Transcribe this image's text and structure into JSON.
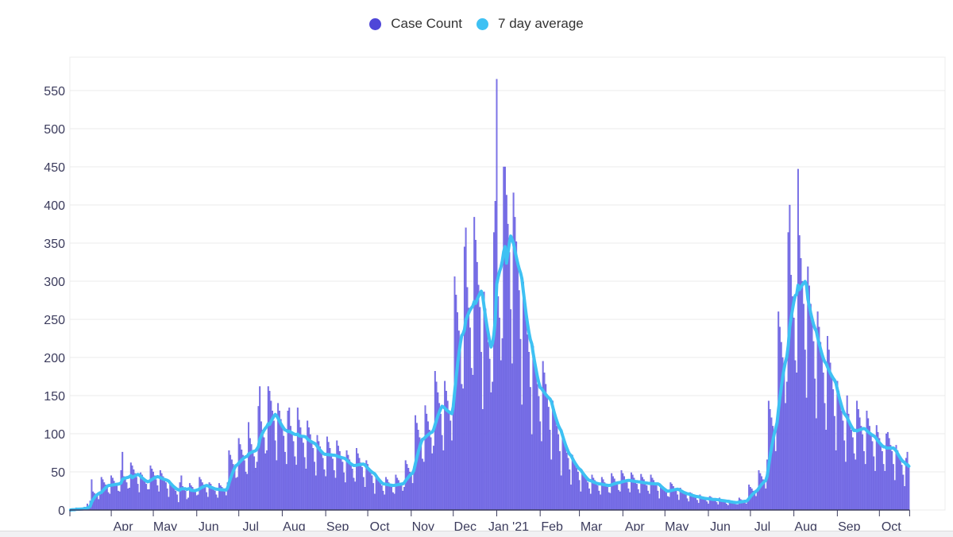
{
  "chart_data": {
    "type": "bar",
    "title": "",
    "xlabel": "",
    "ylabel": "",
    "ylim": [
      0,
      570
    ],
    "y_ticks": [
      0,
      50,
      100,
      150,
      200,
      250,
      300,
      350,
      400,
      450,
      500,
      550
    ],
    "grid": true,
    "legend_position": "top-center",
    "colors": {
      "case_count": "#7b72e9",
      "case_count_edge": "#5a50d6",
      "legend_case": "#4f46d8",
      "average": "#3ec1f3"
    },
    "start_date": "2020-03-03",
    "x_ticks": [
      {
        "label": "Apr",
        "date": "2020-04-01"
      },
      {
        "label": "May",
        "date": "2020-05-01"
      },
      {
        "label": "Jun",
        "date": "2020-06-01"
      },
      {
        "label": "Jul",
        "date": "2020-07-01"
      },
      {
        "label": "Aug",
        "date": "2020-08-01"
      },
      {
        "label": "Sep",
        "date": "2020-09-01"
      },
      {
        "label": "Oct",
        "date": "2020-10-01"
      },
      {
        "label": "Nov",
        "date": "2020-11-01"
      },
      {
        "label": "Dec",
        "date": "2020-12-01"
      },
      {
        "label": "Jan '21",
        "date": "2021-01-01"
      },
      {
        "label": "Feb",
        "date": "2021-02-01"
      },
      {
        "label": "Mar",
        "date": "2021-03-01"
      },
      {
        "label": "Apr",
        "date": "2021-04-01"
      },
      {
        "label": "May",
        "date": "2021-05-01"
      },
      {
        "label": "Jun",
        "date": "2021-06-01"
      },
      {
        "label": "Jul",
        "date": "2021-07-01"
      },
      {
        "label": "Aug",
        "date": "2021-08-01"
      },
      {
        "label": "Sep",
        "date": "2021-09-01"
      },
      {
        "label": "Oct",
        "date": "2021-10-01"
      }
    ],
    "series": [
      {
        "name": "Case Count",
        "kind": "bar",
        "values": [
          0,
          2,
          1,
          0,
          3,
          1,
          0,
          1,
          3,
          2,
          4,
          2,
          8,
          5,
          12,
          40,
          24,
          22,
          20,
          18,
          14,
          20,
          43,
          40,
          36,
          33,
          30,
          23,
          21,
          45,
          42,
          38,
          35,
          32,
          25,
          24,
          52,
          76,
          44,
          40,
          36,
          28,
          29,
          62,
          58,
          53,
          48,
          43,
          34,
          23,
          49,
          46,
          42,
          38,
          34,
          27,
          27,
          58,
          54,
          50,
          45,
          40,
          32,
          24,
          52,
          48,
          44,
          40,
          36,
          28,
          17,
          36,
          34,
          31,
          28,
          25,
          20,
          10,
          36,
          45,
          31,
          28,
          25,
          14,
          16,
          35,
          32,
          30,
          27,
          24,
          19,
          20,
          43,
          40,
          36,
          33,
          30,
          23,
          17,
          36,
          34,
          31,
          28,
          25,
          20,
          16,
          35,
          32,
          30,
          27,
          24,
          19,
          36,
          78,
          72,
          66,
          60,
          54,
          42,
          43,
          94,
          86,
          79,
          72,
          65,
          50,
          47,
          115,
          94,
          86,
          78,
          70,
          55,
          63,
          136,
          162,
          116,
          105,
          95,
          74,
          78,
          162,
          156,
          143,
          130,
          117,
          91,
          65,
          140,
          130,
          119,
          108,
          97,
          76,
          60,
          130,
          134,
          110,
          100,
          90,
          70,
          59,
          134,
          118,
          108,
          98,
          88,
          69,
          54,
          117,
          108,
          99,
          90,
          81,
          63,
          45,
          98,
          90,
          83,
          75,
          68,
          53,
          44,
          96,
          89,
          81,
          74,
          67,
          52,
          42,
          91,
          84,
          77,
          70,
          63,
          49,
          36,
          78,
          72,
          66,
          60,
          54,
          42,
          37,
          81,
          74,
          68,
          62,
          56,
          43,
          30,
          65,
          60,
          55,
          50,
          45,
          35,
          21,
          46,
          42,
          39,
          35,
          32,
          25,
          20,
          43,
          40,
          36,
          33,
          30,
          23,
          21,
          46,
          42,
          39,
          35,
          32,
          25,
          30,
          65,
          60,
          55,
          50,
          45,
          35,
          57,
          124,
          114,
          105,
          95,
          86,
          67,
          63,
          137,
          126,
          116,
          105,
          95,
          74,
          84,
          182,
          168,
          154,
          140,
          126,
          98,
          78,
          169,
          156,
          143,
          130,
          117,
          91,
          141,
          306,
          282,
          259,
          235,
          212,
          165,
          159,
          345,
          370,
          292,
          265,
          239,
          186,
          177,
          384,
          354,
          325,
          295,
          266,
          207,
          132,
          286,
          264,
          242,
          220,
          198,
          154,
          168,
          364,
          405,
          565,
          280,
          252,
          196,
          225,
          450,
          450,
          413,
          375,
          338,
          263,
          192,
          416,
          384,
          352,
          320,
          288,
          224,
          138,
          299,
          276,
          253,
          230,
          207,
          161,
          99,
          215,
          198,
          182,
          165,
          149,
          116,
          90,
          195,
          180,
          165,
          150,
          135,
          105,
          66,
          143,
          132,
          121,
          110,
          99,
          77,
          45,
          98,
          90,
          83,
          75,
          68,
          53,
          33,
          72,
          66,
          61,
          55,
          50,
          39,
          24,
          52,
          48,
          44,
          40,
          36,
          28,
          21,
          46,
          42,
          39,
          35,
          32,
          25,
          20,
          43,
          40,
          36,
          33,
          30,
          23,
          22,
          48,
          44,
          41,
          37,
          33,
          26,
          24,
          52,
          48,
          44,
          40,
          36,
          28,
          23,
          49,
          46,
          42,
          38,
          34,
          27,
          22,
          47,
          43,
          40,
          36,
          32,
          25,
          21,
          46,
          42,
          39,
          35,
          32,
          25,
          15,
          33,
          30,
          28,
          25,
          23,
          18,
          17,
          36,
          34,
          31,
          28,
          25,
          20,
          13,
          29,
          26,
          24,
          22,
          20,
          15,
          11,
          23,
          22,
          20,
          18,
          16,
          13,
          9,
          20,
          18,
          17,
          15,
          14,
          11,
          8,
          18,
          17,
          15,
          14,
          13,
          10,
          7,
          16,
          14,
          13,
          12,
          11,
          8,
          6,
          13,
          12,
          11,
          10,
          9,
          7,
          7,
          16,
          14,
          13,
          12,
          11,
          8,
          15,
          33,
          30,
          28,
          25,
          23,
          18,
          24,
          52,
          48,
          44,
          40,
          36,
          28,
          66,
          143,
          132,
          121,
          110,
          99,
          77,
          120,
          260,
          240,
          220,
          200,
          180,
          140,
          168,
          364,
          400,
          308,
          280,
          252,
          196,
          180,
          447,
          360,
          330,
          300,
          270,
          210,
          147,
          319,
          294,
          270,
          245,
          221,
          172,
          120,
          260,
          240,
          220,
          200,
          180,
          140,
          105,
          228,
          210,
          193,
          175,
          158,
          123,
          78,
          169,
          156,
          143,
          130,
          117,
          91,
          63,
          150,
          126,
          116,
          105,
          95,
          74,
          66,
          143,
          132,
          121,
          110,
          99,
          77,
          60,
          130,
          120,
          110,
          100,
          90,
          70,
          51,
          111,
          102,
          94,
          85,
          77,
          60,
          51,
          100,
          102,
          94,
          85,
          77,
          60,
          39,
          85,
          78,
          72,
          65,
          59,
          46,
          31,
          68,
          76,
          57
        ]
      },
      {
        "name": "7 day average",
        "kind": "line",
        "derived_from": "Case Count",
        "window_days": 7
      }
    ]
  },
  "legend": {
    "case_count": "Case Count",
    "average": "7 day average"
  }
}
